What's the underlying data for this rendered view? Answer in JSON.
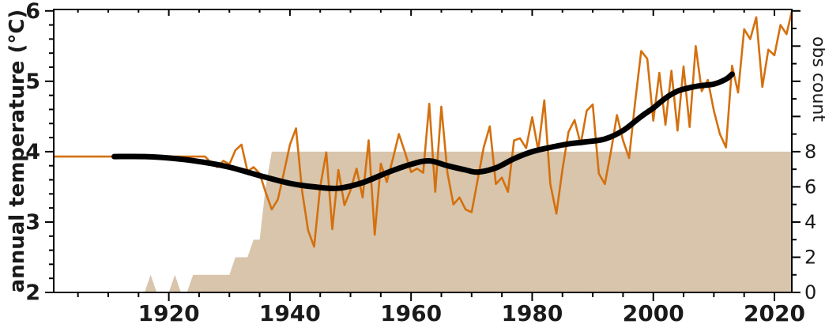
{
  "chart_data": {
    "type": "line",
    "title": "",
    "left_axis": {
      "label": "annual temperature (°C)",
      "ticks": [
        2,
        3,
        4,
        5,
        6
      ],
      "minor_step": 0.2,
      "range": [
        2,
        6.02
      ]
    },
    "right_axis": {
      "label": "obs count",
      "labeled_ticks": [
        0,
        2,
        4,
        6,
        8
      ],
      "unlabeled_ticks": [
        10,
        12,
        14,
        16
      ],
      "minor_step": 1,
      "range": [
        0,
        16.08
      ]
    },
    "x_axis": {
      "ticks": [
        1920,
        1940,
        1960,
        1980,
        2000,
        2020
      ],
      "minor_step": 5,
      "range": [
        1901,
        2023
      ]
    },
    "grid": false,
    "legend": "none",
    "colors": {
      "temperature_line": "#d4700e",
      "smoothed_line": "#000000",
      "obs_area": "#d8c5ab",
      "axis": "#000000",
      "text": "#1a1a1a"
    },
    "series": [
      {
        "name": "annual temperature",
        "type": "line",
        "axis": "left",
        "x_start": 1901,
        "x_step": 1,
        "values": [
          3.93,
          3.93,
          3.93,
          3.93,
          3.93,
          3.93,
          3.93,
          3.93,
          3.93,
          3.93,
          3.93,
          3.93,
          3.93,
          3.93,
          3.93,
          3.93,
          3.93,
          3.93,
          3.93,
          3.93,
          3.93,
          3.93,
          3.93,
          3.93,
          3.93,
          3.93,
          3.84,
          3.78,
          3.87,
          3.82,
          4.02,
          4.1,
          3.72,
          3.78,
          3.69,
          3.42,
          3.18,
          3.32,
          3.7,
          4.1,
          4.33,
          3.45,
          2.88,
          2.65,
          3.5,
          3.99,
          2.9,
          3.74,
          3.24,
          3.45,
          3.76,
          3.35,
          4.16,
          2.82,
          3.83,
          3.57,
          3.9,
          4.25,
          3.99,
          3.71,
          3.76,
          3.7,
          4.68,
          3.43,
          4.64,
          3.7,
          3.25,
          3.35,
          3.18,
          3.14,
          3.6,
          4.06,
          4.36,
          3.54,
          3.63,
          3.43,
          4.16,
          4.19,
          4.05,
          4.49,
          4.02,
          4.73,
          3.54,
          3.12,
          3.75,
          4.28,
          4.45,
          4.1,
          4.58,
          4.67,
          3.69,
          3.54,
          4.0,
          4.52,
          4.16,
          3.91,
          4.7,
          5.43,
          5.32,
          4.44,
          5.12,
          4.38,
          5.15,
          4.3,
          5.21,
          4.35,
          5.5,
          4.86,
          5.02,
          4.58,
          4.25,
          4.06,
          5.22,
          4.84,
          5.74,
          5.6,
          5.91,
          4.92,
          5.45,
          5.37,
          5.8,
          5.67,
          6.04
        ]
      },
      {
        "name": "smoothed temperature",
        "type": "smooth-line",
        "axis": "left",
        "points": [
          [
            1911,
            3.93
          ],
          [
            1916,
            3.93
          ],
          [
            1920,
            3.91
          ],
          [
            1925,
            3.86
          ],
          [
            1930,
            3.78
          ],
          [
            1935,
            3.66
          ],
          [
            1940,
            3.55
          ],
          [
            1944,
            3.5
          ],
          [
            1948,
            3.48
          ],
          [
            1952,
            3.56
          ],
          [
            1956,
            3.7
          ],
          [
            1960,
            3.82
          ],
          [
            1963,
            3.87
          ],
          [
            1966,
            3.8
          ],
          [
            1969,
            3.74
          ],
          [
            1971,
            3.71
          ],
          [
            1974,
            3.77
          ],
          [
            1977,
            3.9
          ],
          [
            1980,
            4.0
          ],
          [
            1983,
            4.06
          ],
          [
            1986,
            4.11
          ],
          [
            1989,
            4.14
          ],
          [
            1992,
            4.18
          ],
          [
            1995,
            4.3
          ],
          [
            1998,
            4.5
          ],
          [
            2000,
            4.62
          ],
          [
            2002,
            4.76
          ],
          [
            2004,
            4.86
          ],
          [
            2006,
            4.91
          ],
          [
            2008,
            4.94
          ],
          [
            2010,
            4.96
          ],
          [
            2012,
            5.03
          ],
          [
            2013,
            5.1
          ]
        ]
      },
      {
        "name": "obs count",
        "type": "area",
        "axis": "right",
        "points": [
          [
            1901,
            0
          ],
          [
            1916,
            0
          ],
          [
            1917,
            1
          ],
          [
            1918,
            0
          ],
          [
            1920,
            0
          ],
          [
            1921,
            1
          ],
          [
            1922,
            0
          ],
          [
            1923,
            0
          ],
          [
            1924,
            1
          ],
          [
            1930,
            1
          ],
          [
            1931,
            2
          ],
          [
            1933,
            2
          ],
          [
            1934,
            3
          ],
          [
            1935,
            3
          ],
          [
            1936,
            6
          ],
          [
            1937,
            8
          ],
          [
            2023,
            8
          ]
        ]
      }
    ]
  }
}
